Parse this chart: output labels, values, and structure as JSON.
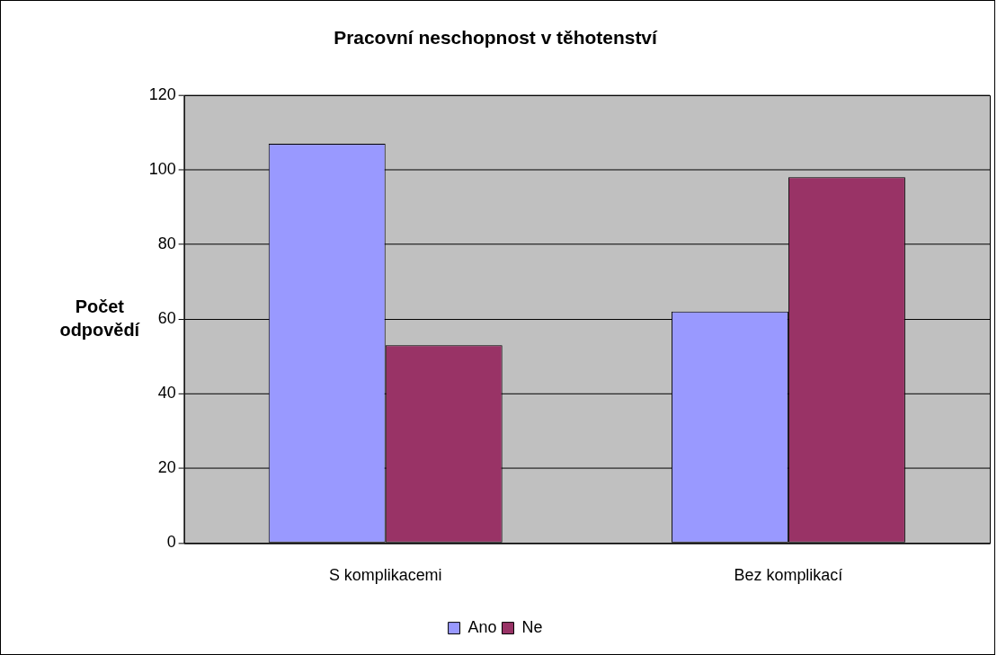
{
  "chart_data": {
    "type": "bar",
    "title": "Pracovní neschopnost v těhotenství",
    "ylabel": "Počet odpovědí",
    "categories": [
      "S komplikacemi",
      "Bez komplikací"
    ],
    "series": [
      {
        "name": "Ano",
        "color": "#9999ff",
        "values": [
          107,
          62
        ]
      },
      {
        "name": "Ne",
        "color": "#993366",
        "values": [
          53,
          98
        ]
      }
    ],
    "ylim": [
      0,
      120
    ],
    "yticks": [
      0,
      20,
      40,
      60,
      80,
      100,
      120
    ],
    "grid": "y",
    "legend": "bottom"
  }
}
